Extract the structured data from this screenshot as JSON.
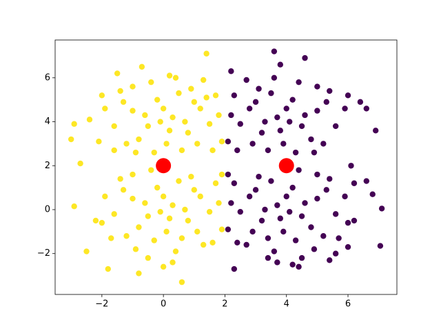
{
  "chart_data": {
    "type": "scatter",
    "xlim": [
      -3.52,
      7.59
    ],
    "ylim": [
      -3.86,
      7.72
    ],
    "xticks": [
      {
        "value": -2,
        "label": "−2"
      },
      0,
      2,
      4,
      6
    ],
    "yticks": [
      {
        "value": -2,
        "label": "−2"
      },
      0,
      2,
      4,
      6
    ],
    "grid": false,
    "series": [
      {
        "color": "#fde725",
        "size": 4.2,
        "x": [
          -3,
          -2.9,
          -2.7,
          -2.9,
          -2.5,
          -1.8,
          -0.8,
          0,
          0.6,
          1.4,
          1.4,
          -0.7,
          0.2,
          -1.5,
          -2.4,
          -2.1,
          -1.6,
          -1,
          -0.5,
          0.3,
          0.8,
          -0.2,
          0.5,
          -0.8,
          1.2,
          -1.3,
          0.1,
          1.5,
          -1.6,
          0.9,
          -0.4,
          1.7,
          -1.0,
          0.6,
          -0.3,
          1.1,
          1.8,
          -1.9,
          -2.0,
          0.0,
          0.7,
          -0.6,
          1.3,
          1.9,
          -1.2,
          0.4,
          -0.9,
          1.6,
          -1.4,
          0.2,
          -0.1,
          1.0,
          -1,
          -0.5,
          0.3,
          0.8,
          -0.2,
          0.5,
          -0.8,
          1.2,
          -1.3,
          0.1,
          1.5,
          -1.6,
          0.9,
          -0.4,
          1.7,
          -1.0,
          0.6,
          -0.3,
          1.1,
          1.8,
          -1.9,
          -2.0,
          0.0,
          0.7,
          -0.6,
          1.3,
          1.9,
          -1.2,
          0.4,
          -0.9,
          1.6,
          -1.4,
          0.2,
          -0.1,
          1.0,
          -2.2,
          -1.7,
          -0.5,
          0.3,
          1.9
        ],
        "y": [
          3.2,
          3.9,
          2.1,
          0.15,
          -1.9,
          -2.7,
          -2.9,
          -2.6,
          -3.3,
          7.1,
          5.1,
          6.5,
          6.1,
          6.2,
          4.1,
          3.1,
          2.7,
          4.5,
          3.8,
          4.2,
          3.5,
          5.0,
          5.3,
          3.2,
          4.6,
          4.9,
          3.0,
          3.9,
          3.8,
          5.5,
          5.8,
          5.2,
          5.6,
          2.7,
          2.6,
          3.0,
          4.3,
          4.6,
          5.2,
          4.6,
          4.0,
          4.3,
          5.9,
          3.1,
          3.0,
          6.0,
          2.6,
          2.7,
          5.4,
          3.6,
          4.0,
          4.9,
          0.5,
          -0.3,
          0.2,
          -0.5,
          1.0,
          1.3,
          -0.8,
          0.6,
          0.9,
          -1.0,
          -0.1,
          -0.2,
          1.5,
          1.8,
          1.2,
          1.6,
          -1.3,
          -1.4,
          -1.0,
          0.3,
          0.6,
          -0.6,
          0.6,
          0.0,
          0.3,
          -1.6,
          -0.9,
          -1.2,
          -1.9,
          -1.8,
          -1.5,
          1.4,
          -0.4,
          -0.1,
          0.9,
          -0.5,
          -1.3,
          -2.2,
          -2.4,
          1.6
        ]
      },
      {
        "color": "#440154",
        "size": 4.2,
        "x": [
          3.6,
          3.8,
          4.6,
          2.2,
          6.6,
          6.4,
          6.9,
          7.1,
          7.05,
          6.6,
          6.2,
          6.8,
          2.3,
          4.4,
          4.2,
          3.4,
          5.4,
          5.6,
          6.0,
          6.1,
          5,
          4.5,
          3.7,
          3.2,
          4.2,
          3.5,
          4.8,
          2.8,
          5.3,
          3.9,
          2.5,
          5.6,
          3.1,
          4.4,
          2.3,
          5.0,
          3.4,
          4.3,
          2.9,
          2.2,
          5.9,
          6.0,
          4.0,
          3.3,
          4.6,
          2.7,
          2.1,
          5.2,
          3.6,
          4.9,
          2.4,
          5.4,
          3.8,
          4.1,
          3.0,
          5,
          4.5,
          3.7,
          3.2,
          4.2,
          3.5,
          4.8,
          2.8,
          5.3,
          3.9,
          2.5,
          5.6,
          3.1,
          4.4,
          2.3,
          5.0,
          3.4,
          4.3,
          2.9,
          2.2,
          5.9,
          6.0,
          4.0,
          3.3,
          4.6,
          2.7,
          2.1,
          5.2,
          3.6,
          4.9,
          2.4,
          5.4,
          3.8,
          4.1,
          3.0,
          6.2,
          5.7,
          4.5,
          3.7,
          2.1
        ],
        "y": [
          7.2,
          6.6,
          6.9,
          6.3,
          4.6,
          4.9,
          3.6,
          0.05,
          -1.65,
          1.3,
          1.2,
          0.7,
          -2.7,
          -2.6,
          -2.5,
          -2.2,
          -2.3,
          -2.0,
          -1.7,
          2.0,
          4.5,
          3.8,
          4.2,
          3.5,
          5.0,
          5.3,
          3.2,
          4.6,
          4.9,
          3.0,
          3.9,
          3.8,
          5.5,
          5.8,
          5.2,
          5.6,
          2.7,
          2.6,
          3.0,
          4.3,
          4.6,
          5.2,
          4.6,
          4.0,
          4.3,
          5.9,
          3.1,
          3.0,
          6.0,
          2.6,
          2.7,
          5.4,
          3.6,
          4.0,
          4.9,
          0.5,
          -0.3,
          0.2,
          -0.5,
          1.0,
          1.3,
          -0.8,
          0.6,
          0.9,
          -1.0,
          -0.1,
          -0.2,
          1.5,
          1.8,
          1.2,
          1.6,
          -1.3,
          -1.4,
          -1.0,
          0.3,
          0.6,
          -0.6,
          0.6,
          0.0,
          0.3,
          -1.6,
          -0.9,
          -1.2,
          -1.9,
          -1.8,
          -1.5,
          1.4,
          -0.4,
          -0.1,
          0.9,
          -0.5,
          -1.3,
          -2.2,
          -2.4,
          1.6
        ]
      },
      {
        "color": "#ff0000",
        "size": 11,
        "x": [
          0,
          4
        ],
        "y": [
          2,
          2
        ]
      }
    ]
  }
}
